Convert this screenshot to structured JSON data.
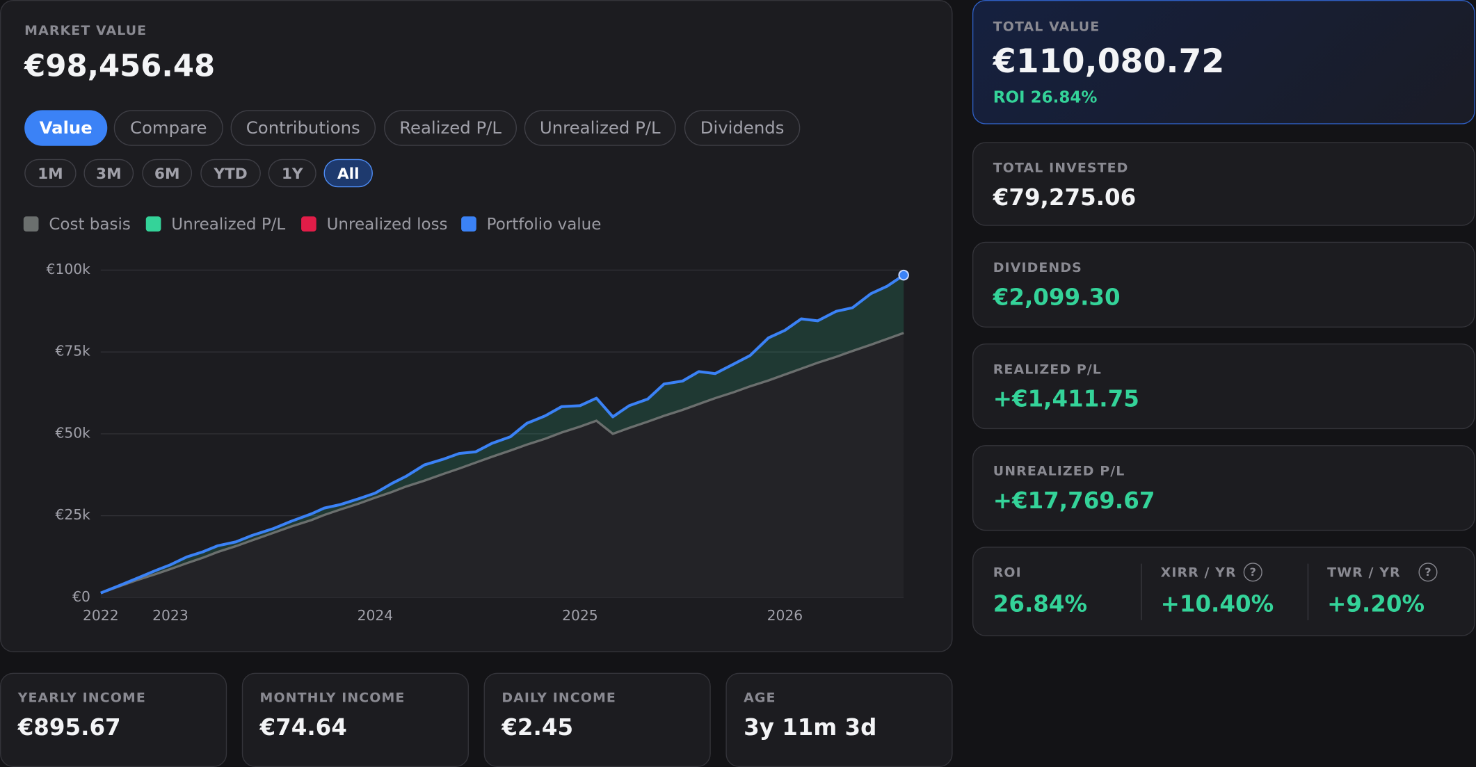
{
  "market_value": {
    "label": "MARKET VALUE",
    "value": "€98,456.48"
  },
  "tabs": [
    "Value",
    "Compare",
    "Contributions",
    "Realized P/L",
    "Unrealized P/L",
    "Dividends"
  ],
  "active_tab": "Value",
  "ranges": [
    "1M",
    "3M",
    "6M",
    "YTD",
    "1Y",
    "All"
  ],
  "active_range": "All",
  "chart_data": {
    "type": "line",
    "x": [
      2022.66,
      2022.74,
      2022.83,
      2022.93,
      2023.0,
      2023.08,
      2023.16,
      2023.23,
      2023.32,
      2023.4,
      2023.5,
      2023.59,
      2023.69,
      2023.75,
      2023.83,
      2023.92,
      2024.0,
      2024.08,
      2024.15,
      2024.24,
      2024.33,
      2024.41,
      2024.49,
      2024.57,
      2024.66,
      2024.74,
      2024.83,
      2024.91,
      2025.0,
      2025.08,
      2025.16,
      2025.24,
      2025.33,
      2025.41,
      2025.5,
      2025.58,
      2025.66,
      2025.75,
      2025.83,
      2025.92,
      2026.0,
      2026.08,
      2026.16,
      2026.25,
      2026.33,
      2026.42,
      2026.5,
      2026.58
    ],
    "series": [
      {
        "name": "Cost basis",
        "color": "#6b6f6e",
        "values": [
          1400,
          3200,
          5200,
          7200,
          8700,
          10500,
          12200,
          13900,
          15700,
          17500,
          19700,
          21700,
          23700,
          25200,
          26900,
          28700,
          30500,
          32200,
          33900,
          35700,
          37700,
          39400,
          41200,
          43000,
          44900,
          46700,
          48500,
          50400,
          52200,
          54000,
          50000,
          51800,
          53700,
          55500,
          57300,
          59100,
          60900,
          62700,
          64500,
          66300,
          68100,
          69900,
          71700,
          73500,
          75300,
          77200,
          79000,
          80800
        ]
      },
      {
        "name": "Portfolio value",
        "color": "#3b82f6",
        "values": [
          1400,
          3400,
          5700,
          8300,
          10000,
          12400,
          14000,
          15800,
          17000,
          19000,
          21000,
          23300,
          25600,
          27300,
          28400,
          30200,
          31900,
          34800,
          37000,
          40500,
          42200,
          44000,
          44500,
          47100,
          49100,
          53200,
          55500,
          58300,
          58600,
          60900,
          55200,
          58600,
          60600,
          65200,
          66100,
          69000,
          68400,
          71300,
          73900,
          79300,
          81600,
          85100,
          84500,
          87400,
          88500,
          92800,
          95100,
          98456
        ]
      }
    ],
    "areas": [
      {
        "name": "Unrealized P/L",
        "color": "#34d399"
      },
      {
        "name": "Unrealized loss",
        "color": "#e11d48"
      }
    ],
    "xlim": [
      2022.66,
      2026.58
    ],
    "xticks": [
      {
        "value": 2022.66,
        "label": "2022"
      },
      2023,
      2024,
      2025,
      2026
    ],
    "ylim": [
      0,
      100000
    ],
    "yticks": [
      {
        "value": 0,
        "label": "€0"
      },
      {
        "value": 25000,
        "label": "€25k"
      },
      {
        "value": 50000,
        "label": "€50k"
      },
      {
        "value": 75000,
        "label": "€75k"
      },
      {
        "value": 100000,
        "label": "€100k"
      }
    ],
    "grid": true
  },
  "income": [
    {
      "label": "YEARLY INCOME",
      "value": "€895.67"
    },
    {
      "label": "MONTHLY INCOME",
      "value": "€74.64"
    },
    {
      "label": "DAILY INCOME",
      "value": "€2.45"
    },
    {
      "label": "AGE",
      "value": "3y 11m 3d"
    }
  ],
  "total_value": {
    "label": "TOTAL VALUE",
    "value": "€110,080.72",
    "roi": "ROI 26.84%"
  },
  "summary": [
    {
      "label": "TOTAL INVESTED",
      "value": "€79,275.06",
      "color": "#f3f4f6"
    },
    {
      "label": "DIVIDENDS",
      "value": "€2,099.30",
      "color": "#34d399"
    },
    {
      "label": "REALIZED P/L",
      "value": "+€1,411.75",
      "color": "#34d399"
    },
    {
      "label": "UNREALIZED P/L",
      "value": "+€17,769.67",
      "color": "#34d399"
    }
  ],
  "metrics": [
    {
      "label": "ROI",
      "value": "26.84%"
    },
    {
      "label": "XIRR / YR",
      "value": "+10.40%",
      "help": "?"
    },
    {
      "label": "TWR / YR",
      "value": "+9.20%",
      "help": "?"
    }
  ]
}
